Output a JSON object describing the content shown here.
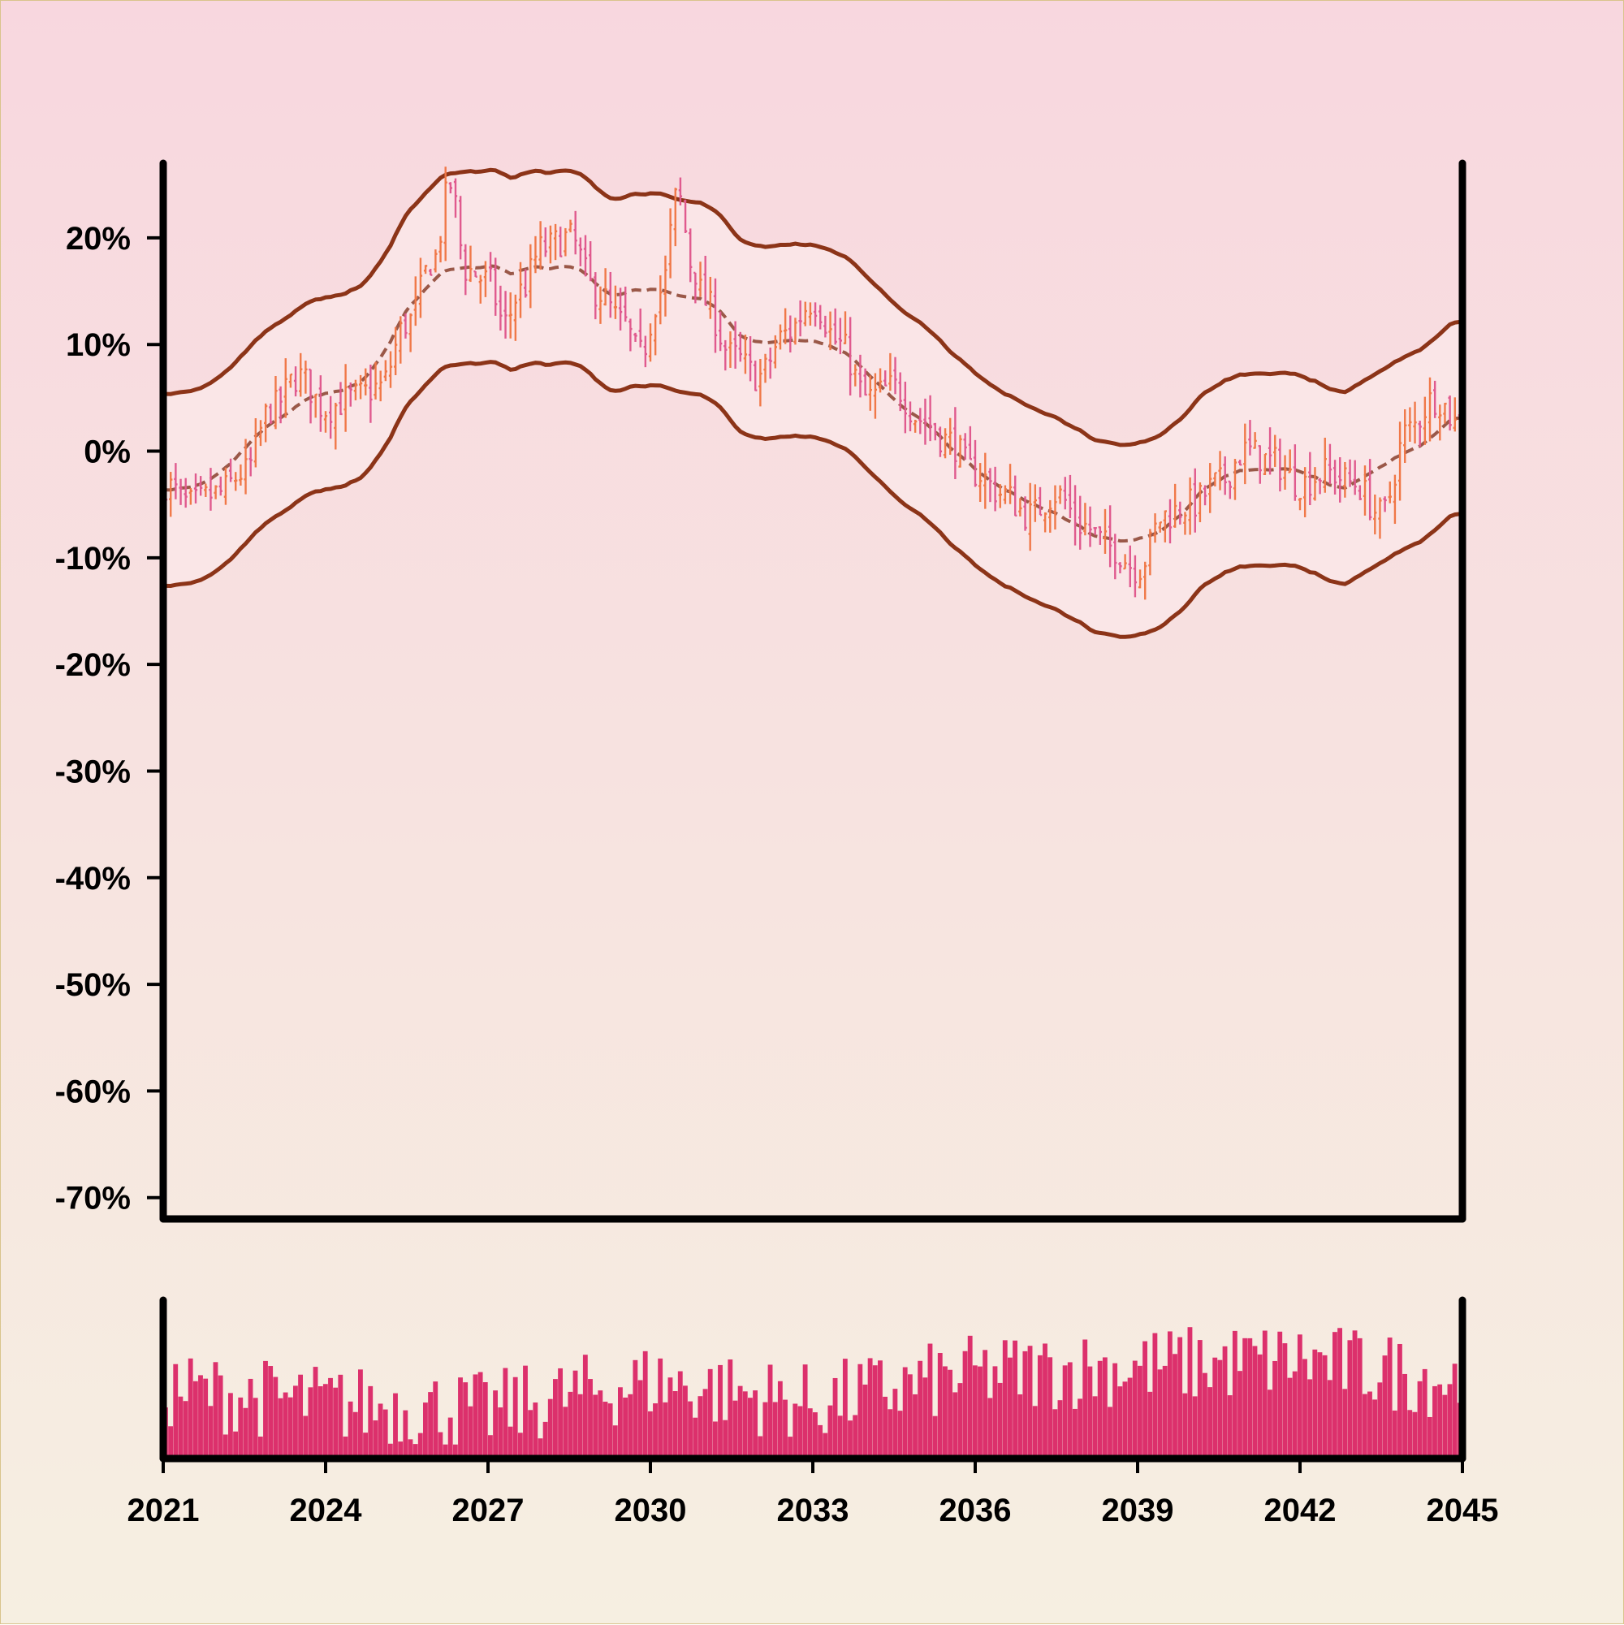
{
  "colors": {
    "up_bar": "#f07848",
    "down_bar": "#e05a8e",
    "band_line": "#8c3418",
    "band_fill": "#fbe8ea",
    "ma_line": "#9a5848",
    "volume": "#dc306c",
    "axis": "#000000"
  },
  "chart_data": {
    "type": "ohlc",
    "title": "",
    "xlabel": "",
    "ylabel": "",
    "xlim": [
      2021,
      2045
    ],
    "ylim": [
      -72,
      27
    ],
    "x_ticks": [
      "2021",
      "2024",
      "2027",
      "2030",
      "2033",
      "2036",
      "2039",
      "2042",
      "2045"
    ],
    "y_ticks": [
      "20%",
      "10%",
      "0%",
      "-10%",
      "-20%",
      "-30%",
      "-40%",
      "-50%",
      "-60%",
      "-70%"
    ],
    "price_anchors": [
      [
        2021.0,
        -3
      ],
      [
        2021.5,
        -5
      ],
      [
        2022.0,
        -4
      ],
      [
        2022.5,
        -2
      ],
      [
        2023.0,
        4
      ],
      [
        2023.5,
        7
      ],
      [
        2024.0,
        4
      ],
      [
        2024.5,
        5
      ],
      [
        2025.0,
        6
      ],
      [
        2025.5,
        12
      ],
      [
        2026.0,
        18
      ],
      [
        2026.3,
        25
      ],
      [
        2026.6,
        17
      ],
      [
        2027.0,
        16
      ],
      [
        2027.3,
        12
      ],
      [
        2027.6,
        15
      ],
      [
        2028.0,
        19
      ],
      [
        2028.5,
        20
      ],
      [
        2029.0,
        15
      ],
      [
        2029.5,
        12
      ],
      [
        2029.8,
        9
      ],
      [
        2030.2,
        15
      ],
      [
        2030.5,
        24
      ],
      [
        2030.8,
        17
      ],
      [
        2031.0,
        14
      ],
      [
        2031.5,
        9
      ],
      [
        2032.0,
        7
      ],
      [
        2032.5,
        11
      ],
      [
        2033.0,
        14
      ],
      [
        2033.5,
        10
      ],
      [
        2034.0,
        5
      ],
      [
        2034.5,
        6
      ],
      [
        2035.0,
        3
      ],
      [
        2035.5,
        1
      ],
      [
        2036.0,
        -2
      ],
      [
        2036.5,
        -4
      ],
      [
        2037.0,
        -6
      ],
      [
        2037.5,
        -4
      ],
      [
        2038.0,
        -7
      ],
      [
        2038.5,
        -9
      ],
      [
        2039.0,
        -11
      ],
      [
        2039.5,
        -6
      ],
      [
        2040.0,
        -5
      ],
      [
        2040.5,
        -3
      ],
      [
        2041.0,
        0
      ],
      [
        2041.5,
        -1
      ],
      [
        2042.0,
        -3
      ],
      [
        2042.5,
        -2
      ],
      [
        2043.0,
        -3
      ],
      [
        2043.5,
        -6
      ],
      [
        2044.0,
        2
      ],
      [
        2044.5,
        5
      ],
      [
        2045.0,
        2
      ]
    ],
    "ohlc_count": 260,
    "band_window": 10,
    "band_width_pct": 9,
    "volume_level": [
      0.45,
      0.35,
      0.3,
      0.5,
      0.35,
      0.55,
      0.6,
      0.65,
      0.5
    ],
    "volume_seed": 7,
    "grid": false,
    "legend": "none"
  }
}
